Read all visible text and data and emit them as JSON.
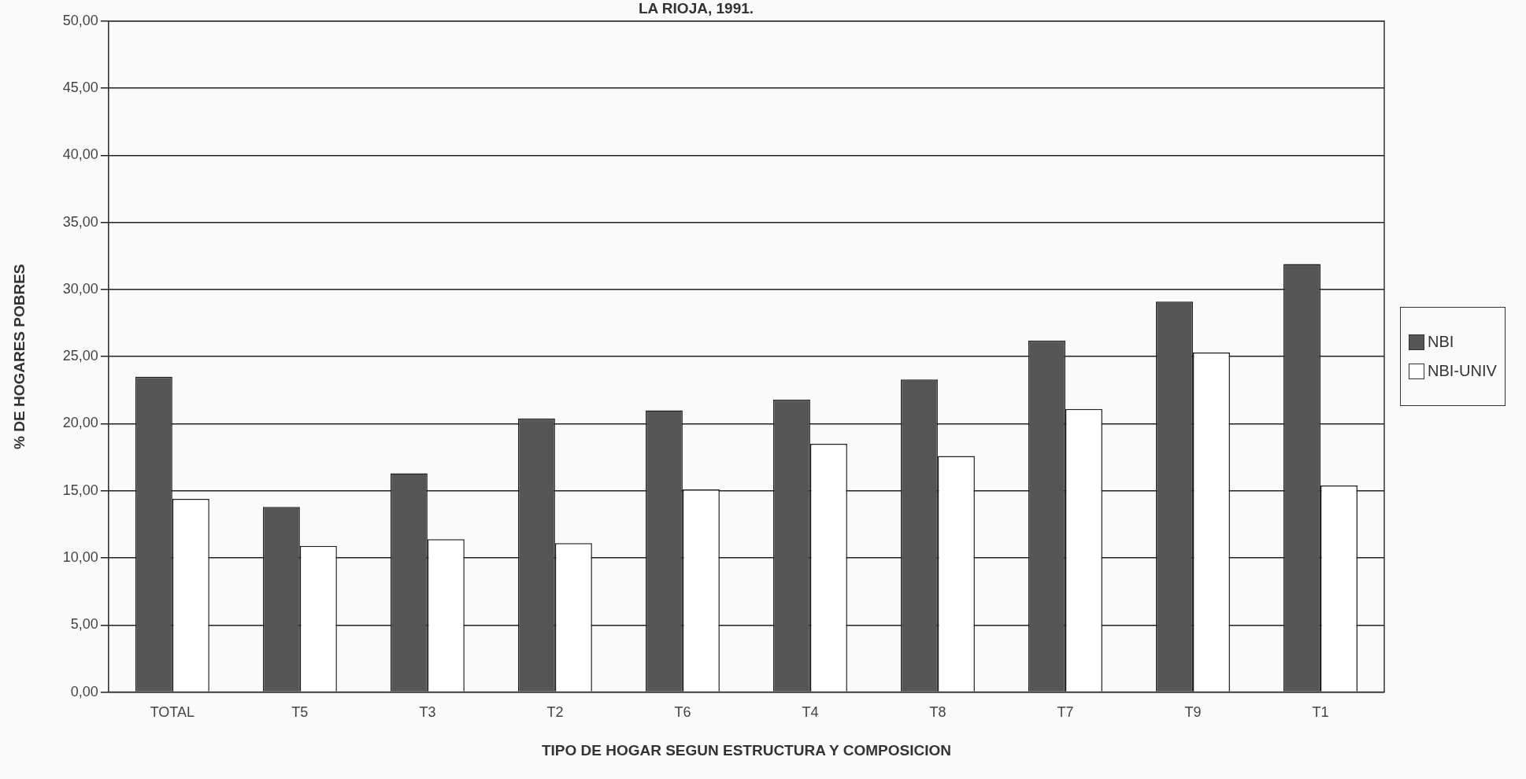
{
  "chart_data": {
    "type": "bar",
    "title": "LA RIOJA, 1991.",
    "xlabel": "TIPO DE HOGAR SEGUN ESTRUCTURA Y COMPOSICION",
    "ylabel": "% DE HOGARES POBRES",
    "categories": [
      "TOTAL",
      "T5",
      "T3",
      "T2",
      "T6",
      "T4",
      "T8",
      "T7",
      "T9",
      "T1"
    ],
    "series": [
      {
        "name": "NBI",
        "color": "#555555",
        "values": [
          23.5,
          13.8,
          16.3,
          20.4,
          21.0,
          21.8,
          23.3,
          26.2,
          29.1,
          31.9
        ]
      },
      {
        "name": "NBI-UNIV",
        "color": "#ffffff",
        "values": [
          14.4,
          10.9,
          11.4,
          11.1,
          15.1,
          18.5,
          17.6,
          21.1,
          25.3,
          15.4
        ]
      }
    ],
    "ylim": [
      0,
      50
    ],
    "yticks": [
      {
        "value": 0,
        "label": "0,00"
      },
      {
        "value": 5,
        "label": "5,00"
      },
      {
        "value": 10,
        "label": "10,00"
      },
      {
        "value": 15,
        "label": "15,00"
      },
      {
        "value": 20,
        "label": "20,00"
      },
      {
        "value": 25,
        "label": "25,00"
      },
      {
        "value": 30,
        "label": "30,00"
      },
      {
        "value": 35,
        "label": "35,00"
      },
      {
        "value": 40,
        "label": "40,00"
      },
      {
        "value": 45,
        "label": "45,00"
      },
      {
        "value": 50,
        "label": "50,00"
      }
    ],
    "grid": "y",
    "legend": "right"
  }
}
